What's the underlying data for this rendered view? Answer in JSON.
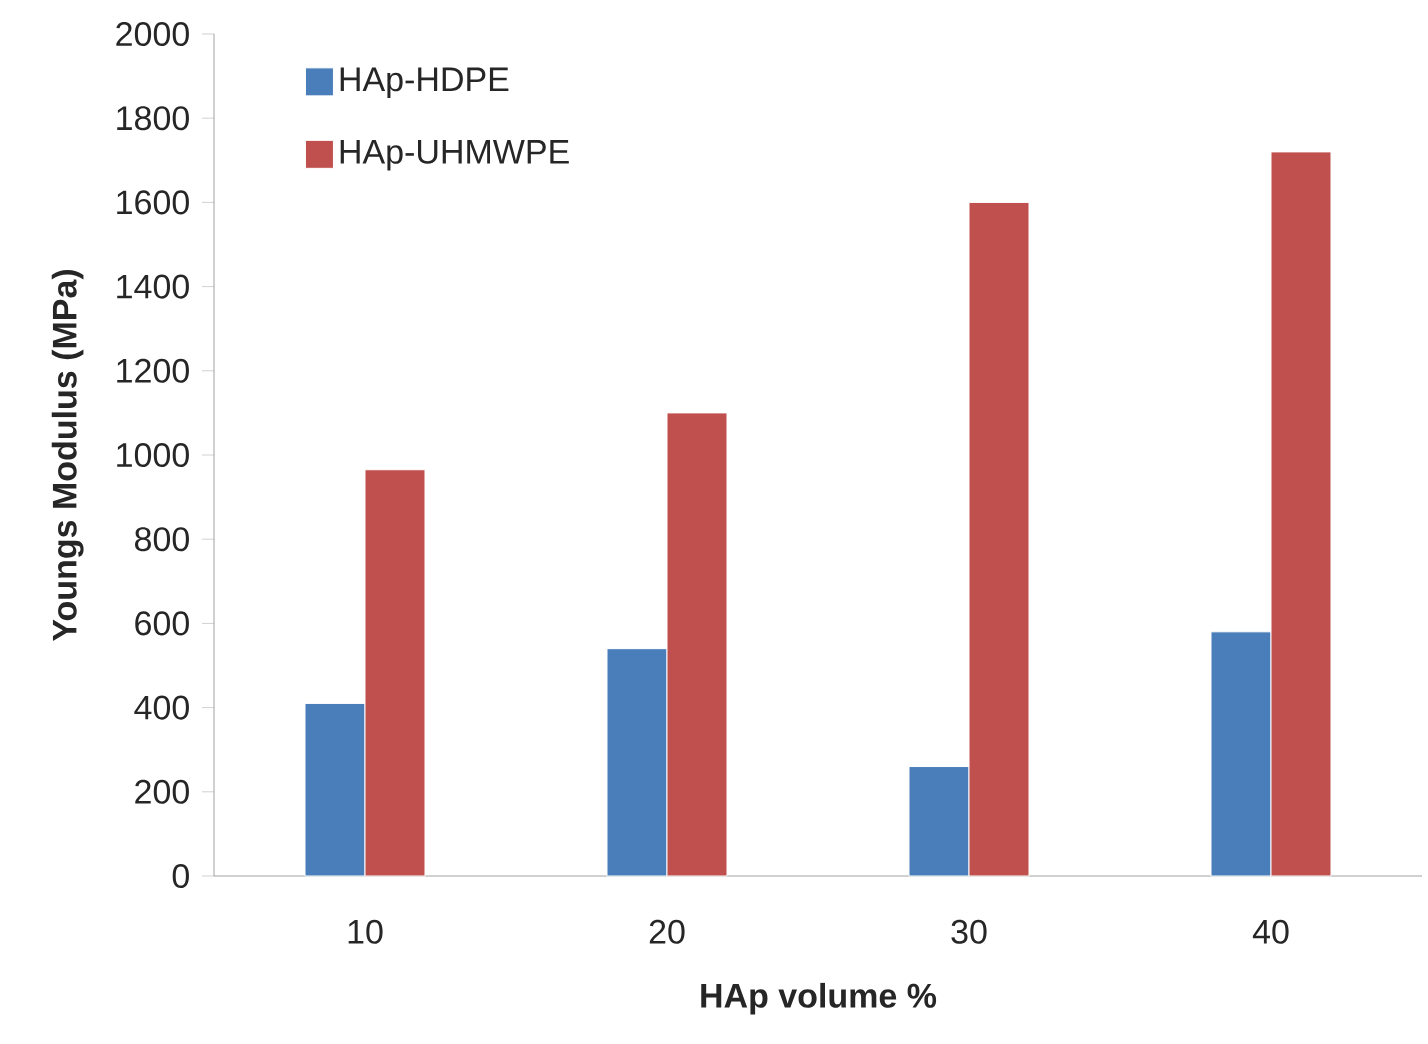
{
  "chart_data": {
    "type": "bar",
    "xlabel": "HAp volume %",
    "ylabel": "Youngs Modulus (MPa)",
    "categories": [
      "10",
      "20",
      "30",
      "40"
    ],
    "series": [
      {
        "name": "HAp-HDPE",
        "color": "#4a7ebb",
        "values": [
          410,
          540,
          260,
          580
        ]
      },
      {
        "name": "HAp-UHMWPE",
        "color": "#c0504d",
        "values": [
          965,
          1100,
          1600,
          1720
        ]
      }
    ],
    "ylim": [
      0,
      2000
    ],
    "yticks": [
      0,
      200,
      400,
      600,
      800,
      1000,
      1200,
      1400,
      1600,
      1800,
      2000
    ],
    "legend": "top left"
  }
}
